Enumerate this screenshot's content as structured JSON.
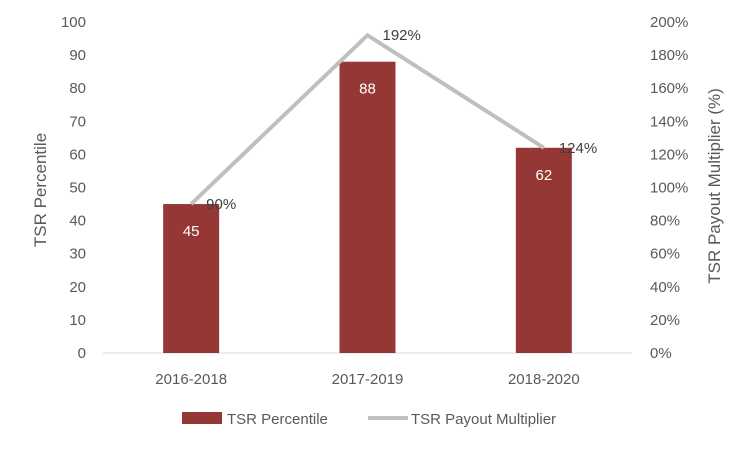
{
  "chart_data": {
    "type": "bar+line",
    "categories": [
      "2016-2018",
      "2017-2019",
      "2018-2020"
    ],
    "series": [
      {
        "name": "TSR Percentile",
        "type": "bar",
        "axis": "left",
        "values": [
          45,
          88,
          62
        ],
        "data_labels": [
          "45",
          "88",
          "62"
        ],
        "color": "#953735"
      },
      {
        "name": "TSR Payout Multiplier",
        "type": "line",
        "axis": "right",
        "values": [
          90,
          192,
          124
        ],
        "data_labels": [
          "90%",
          "192%",
          "124%"
        ],
        "color": "#bfbfbf"
      }
    ],
    "ylabel_left": "TSR Percentile",
    "ylabel_right": "TSR Payout Multiplier (%)",
    "ylim_left": [
      0,
      100
    ],
    "ylim_right": [
      0,
      200
    ],
    "yticks_left": [
      "0",
      "10",
      "20",
      "30",
      "40",
      "50",
      "60",
      "70",
      "80",
      "90",
      "100"
    ],
    "yticks_right": [
      "0%",
      "20%",
      "40%",
      "60%",
      "80%",
      "100%",
      "120%",
      "140%",
      "160%",
      "180%",
      "200%"
    ],
    "legend": [
      "TSR Percentile",
      "TSR Payout Multiplier"
    ],
    "legend_position": "bottom",
    "grid": false
  },
  "colors": {
    "bar": "#953735",
    "line": "#bfbfbf",
    "text": "#595959",
    "axis": "#d9d9d9"
  }
}
